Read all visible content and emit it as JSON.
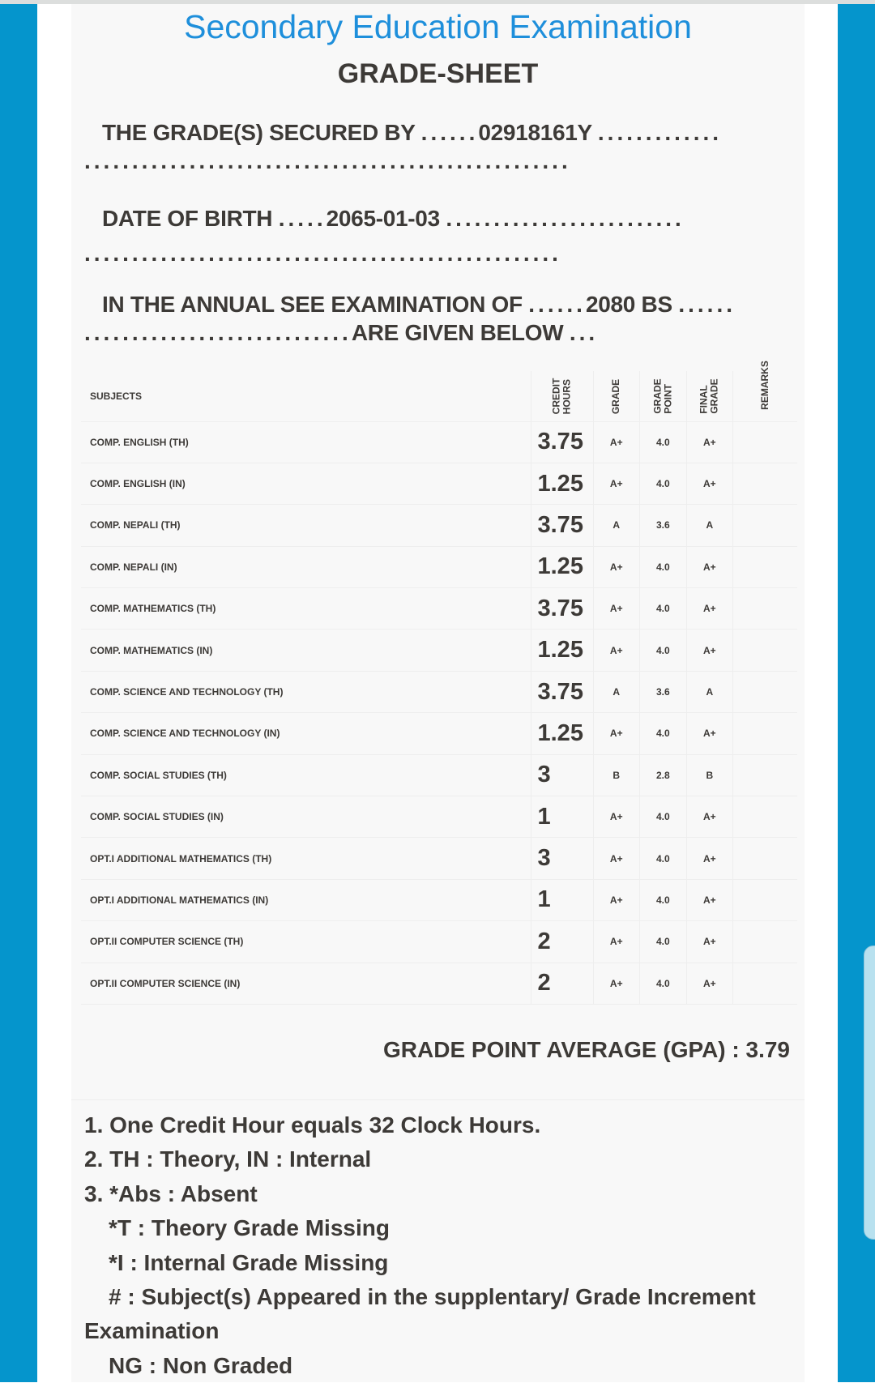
{
  "header": {
    "title": "Secondary Education Examination",
    "subtitle": "GRADE-SHEET"
  },
  "info": {
    "secured_by_label": "THE GRADE(S) SECURED BY",
    "student_id": "02918161Y",
    "dob_label": "DATE OF BIRTH",
    "dob": "2065-01-03",
    "exam_label": "IN THE ANNUAL SEE EXAMINATION OF",
    "exam_year": "2080 BS",
    "given_below": "ARE GIVEN BELOW"
  },
  "table": {
    "headers": {
      "subject": "SUBJECTS",
      "credit1": "CREDIT",
      "credit2": "HOURS",
      "grade": "GRADE",
      "gp1": "GRADE",
      "gp2": "POINT",
      "fg1": "FINAL",
      "fg2": "GRADE",
      "remarks": "REMARKS"
    },
    "rows": [
      {
        "subject": "COMP. ENGLISH (TH)",
        "credit": "3.75",
        "grade": "A+",
        "gp": "4.0",
        "final": "A+",
        "remarks": ""
      },
      {
        "subject": "COMP. ENGLISH (IN)",
        "credit": "1.25",
        "grade": "A+",
        "gp": "4.0",
        "final": "A+",
        "remarks": ""
      },
      {
        "subject": "COMP. NEPALI (TH)",
        "credit": "3.75",
        "grade": "A",
        "gp": "3.6",
        "final": "A",
        "remarks": ""
      },
      {
        "subject": "COMP. NEPALI (IN)",
        "credit": "1.25",
        "grade": "A+",
        "gp": "4.0",
        "final": "A+",
        "remarks": ""
      },
      {
        "subject": "COMP. MATHEMATICS (TH)",
        "credit": "3.75",
        "grade": "A+",
        "gp": "4.0",
        "final": "A+",
        "remarks": ""
      },
      {
        "subject": "COMP. MATHEMATICS (IN)",
        "credit": "1.25",
        "grade": "A+",
        "gp": "4.0",
        "final": "A+",
        "remarks": ""
      },
      {
        "subject": "COMP. SCIENCE AND TECHNOLOGY (TH)",
        "credit": "3.75",
        "grade": "A",
        "gp": "3.6",
        "final": "A",
        "remarks": ""
      },
      {
        "subject": "COMP. SCIENCE AND TECHNOLOGY (IN)",
        "credit": "1.25",
        "grade": "A+",
        "gp": "4.0",
        "final": "A+",
        "remarks": ""
      },
      {
        "subject": "COMP. SOCIAL STUDIES (TH)",
        "credit": "3",
        "grade": "B",
        "gp": "2.8",
        "final": "B",
        "remarks": ""
      },
      {
        "subject": "COMP. SOCIAL STUDIES (IN)",
        "credit": "1",
        "grade": "A+",
        "gp": "4.0",
        "final": "A+",
        "remarks": ""
      },
      {
        "subject": "OPT.I ADDITIONAL MATHEMATICS (TH)",
        "credit": "3",
        "grade": "A+",
        "gp": "4.0",
        "final": "A+",
        "remarks": ""
      },
      {
        "subject": "OPT.I ADDITIONAL MATHEMATICS (IN)",
        "credit": "1",
        "grade": "A+",
        "gp": "4.0",
        "final": "A+",
        "remarks": ""
      },
      {
        "subject": "OPT.II COMPUTER SCIENCE (TH)",
        "credit": "2",
        "grade": "A+",
        "gp": "4.0",
        "final": "A+",
        "remarks": ""
      },
      {
        "subject": "OPT.II COMPUTER SCIENCE (IN)",
        "credit": "2",
        "grade": "A+",
        "gp": "4.0",
        "final": "A+",
        "remarks": ""
      }
    ]
  },
  "gpa": {
    "label": "GRADE POINT AVERAGE (GPA) :",
    "value": "3.79"
  },
  "notes": [
    "1. One Credit Hour equals 32 Clock Hours.",
    "2. TH : Theory, IN : Internal",
    "3. *Abs : Absent",
    "*T : Theory Grade Missing",
    "*I : Internal Grade Missing",
    "# : Subject(s) Appeared in the supplentary/ Grade Increment",
    "Examination",
    "NG : Non Graded"
  ],
  "colors": {
    "title": "#1e8fdb",
    "frame": "#0595cc"
  }
}
